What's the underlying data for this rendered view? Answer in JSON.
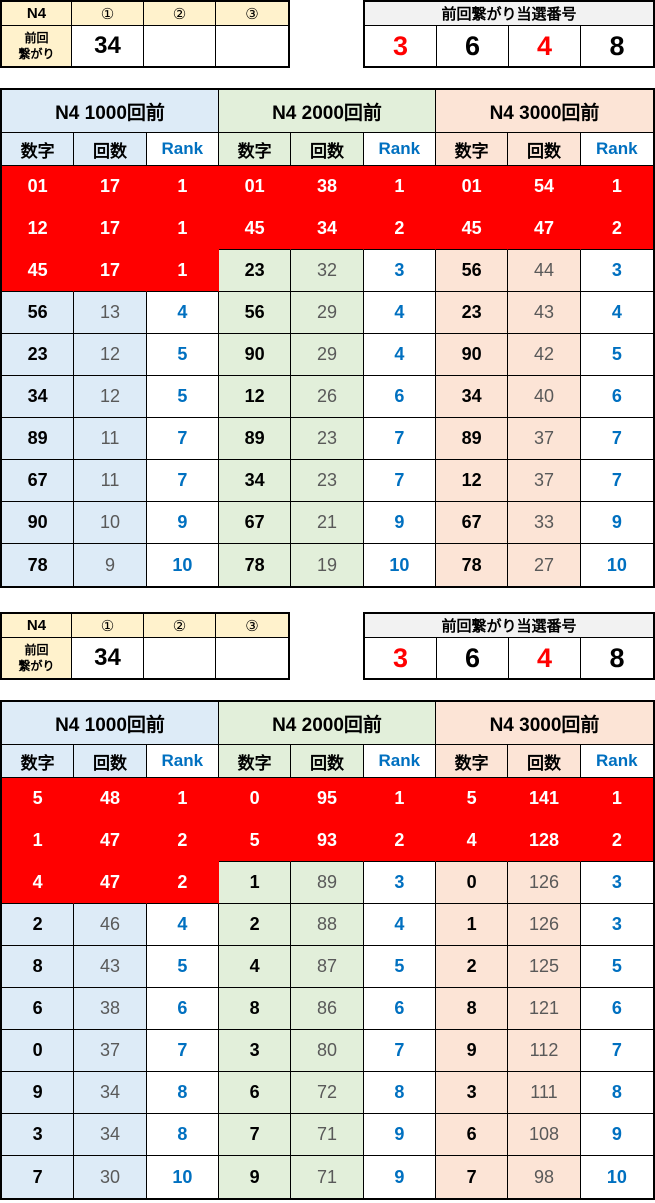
{
  "colors": {
    "highlight_fill": "#FF0000",
    "rank_text": "#0070C0",
    "count_text": "#595959",
    "yellow_header": "#FFF2CC",
    "gray_header": "#F2F2F2",
    "blue_theme": "#DDEBF7",
    "green_theme": "#E2EFDA",
    "peach_theme": "#FCE4D6"
  },
  "sections": [
    {
      "info_table": {
        "corner": "N4",
        "col_headers": [
          "①",
          "②",
          "③"
        ],
        "row_label_lines": [
          "前回",
          "繋がり"
        ],
        "values": [
          "34",
          "",
          ""
        ]
      },
      "winning_table": {
        "title": "前回繋がり当選番号",
        "numbers": [
          {
            "v": "3",
            "red": true
          },
          {
            "v": "6",
            "red": false
          },
          {
            "v": "4",
            "red": true
          },
          {
            "v": "8",
            "red": false
          }
        ]
      },
      "rank_table": {
        "col_headers": [
          "数字",
          "回数",
          "Rank"
        ],
        "groups": [
          {
            "title": "N4 1000回前",
            "theme": "blue",
            "red_rows": 3,
            "rows": [
              [
                "01",
                "17",
                "1"
              ],
              [
                "12",
                "17",
                "1"
              ],
              [
                "45",
                "17",
                "1"
              ],
              [
                "56",
                "13",
                "4"
              ],
              [
                "23",
                "12",
                "5"
              ],
              [
                "34",
                "12",
                "5"
              ],
              [
                "89",
                "11",
                "7"
              ],
              [
                "67",
                "11",
                "7"
              ],
              [
                "90",
                "10",
                "9"
              ],
              [
                "78",
                "9",
                "10"
              ]
            ]
          },
          {
            "title": "N4 2000回前",
            "theme": "green",
            "red_rows": 2,
            "rows": [
              [
                "01",
                "38",
                "1"
              ],
              [
                "45",
                "34",
                "2"
              ],
              [
                "23",
                "32",
                "3"
              ],
              [
                "56",
                "29",
                "4"
              ],
              [
                "90",
                "29",
                "4"
              ],
              [
                "12",
                "26",
                "6"
              ],
              [
                "89",
                "23",
                "7"
              ],
              [
                "34",
                "23",
                "7"
              ],
              [
                "67",
                "21",
                "9"
              ],
              [
                "78",
                "19",
                "10"
              ]
            ]
          },
          {
            "title": "N4 3000回前",
            "theme": "peach",
            "red_rows": 2,
            "rows": [
              [
                "01",
                "54",
                "1"
              ],
              [
                "45",
                "47",
                "2"
              ],
              [
                "56",
                "44",
                "3"
              ],
              [
                "23",
                "43",
                "4"
              ],
              [
                "90",
                "42",
                "5"
              ],
              [
                "34",
                "40",
                "6"
              ],
              [
                "89",
                "37",
                "7"
              ],
              [
                "12",
                "37",
                "7"
              ],
              [
                "67",
                "33",
                "9"
              ],
              [
                "78",
                "27",
                "10"
              ]
            ]
          }
        ]
      }
    },
    {
      "info_table": {
        "corner": "N4",
        "col_headers": [
          "①",
          "②",
          "③"
        ],
        "row_label_lines": [
          "前回",
          "繋がり"
        ],
        "values": [
          "34",
          "",
          ""
        ]
      },
      "winning_table": {
        "title": "前回繋がり当選番号",
        "numbers": [
          {
            "v": "3",
            "red": true
          },
          {
            "v": "6",
            "red": false
          },
          {
            "v": "4",
            "red": true
          },
          {
            "v": "8",
            "red": false
          }
        ]
      },
      "rank_table": {
        "col_headers": [
          "数字",
          "回数",
          "Rank"
        ],
        "groups": [
          {
            "title": "N4 1000回前",
            "theme": "blue",
            "red_rows": 3,
            "rows": [
              [
                "5",
                "48",
                "1"
              ],
              [
                "1",
                "47",
                "2"
              ],
              [
                "4",
                "47",
                "2"
              ],
              [
                "2",
                "46",
                "4"
              ],
              [
                "8",
                "43",
                "5"
              ],
              [
                "6",
                "38",
                "6"
              ],
              [
                "0",
                "37",
                "7"
              ],
              [
                "9",
                "34",
                "8"
              ],
              [
                "3",
                "34",
                "8"
              ],
              [
                "7",
                "30",
                "10"
              ]
            ]
          },
          {
            "title": "N4 2000回前",
            "theme": "green",
            "red_rows": 2,
            "rows": [
              [
                "0",
                "95",
                "1"
              ],
              [
                "5",
                "93",
                "2"
              ],
              [
                "1",
                "89",
                "3"
              ],
              [
                "2",
                "88",
                "4"
              ],
              [
                "4",
                "87",
                "5"
              ],
              [
                "8",
                "86",
                "6"
              ],
              [
                "3",
                "80",
                "7"
              ],
              [
                "6",
                "72",
                "8"
              ],
              [
                "7",
                "71",
                "9"
              ],
              [
                "9",
                "71",
                "9"
              ]
            ]
          },
          {
            "title": "N4 3000回前",
            "theme": "peach",
            "red_rows": 2,
            "rows": [
              [
                "5",
                "141",
                "1"
              ],
              [
                "4",
                "128",
                "2"
              ],
              [
                "0",
                "126",
                "3"
              ],
              [
                "1",
                "126",
                "3"
              ],
              [
                "2",
                "125",
                "5"
              ],
              [
                "8",
                "121",
                "6"
              ],
              [
                "9",
                "112",
                "7"
              ],
              [
                "3",
                "111",
                "8"
              ],
              [
                "6",
                "108",
                "9"
              ],
              [
                "7",
                "98",
                "10"
              ]
            ]
          }
        ]
      }
    }
  ]
}
